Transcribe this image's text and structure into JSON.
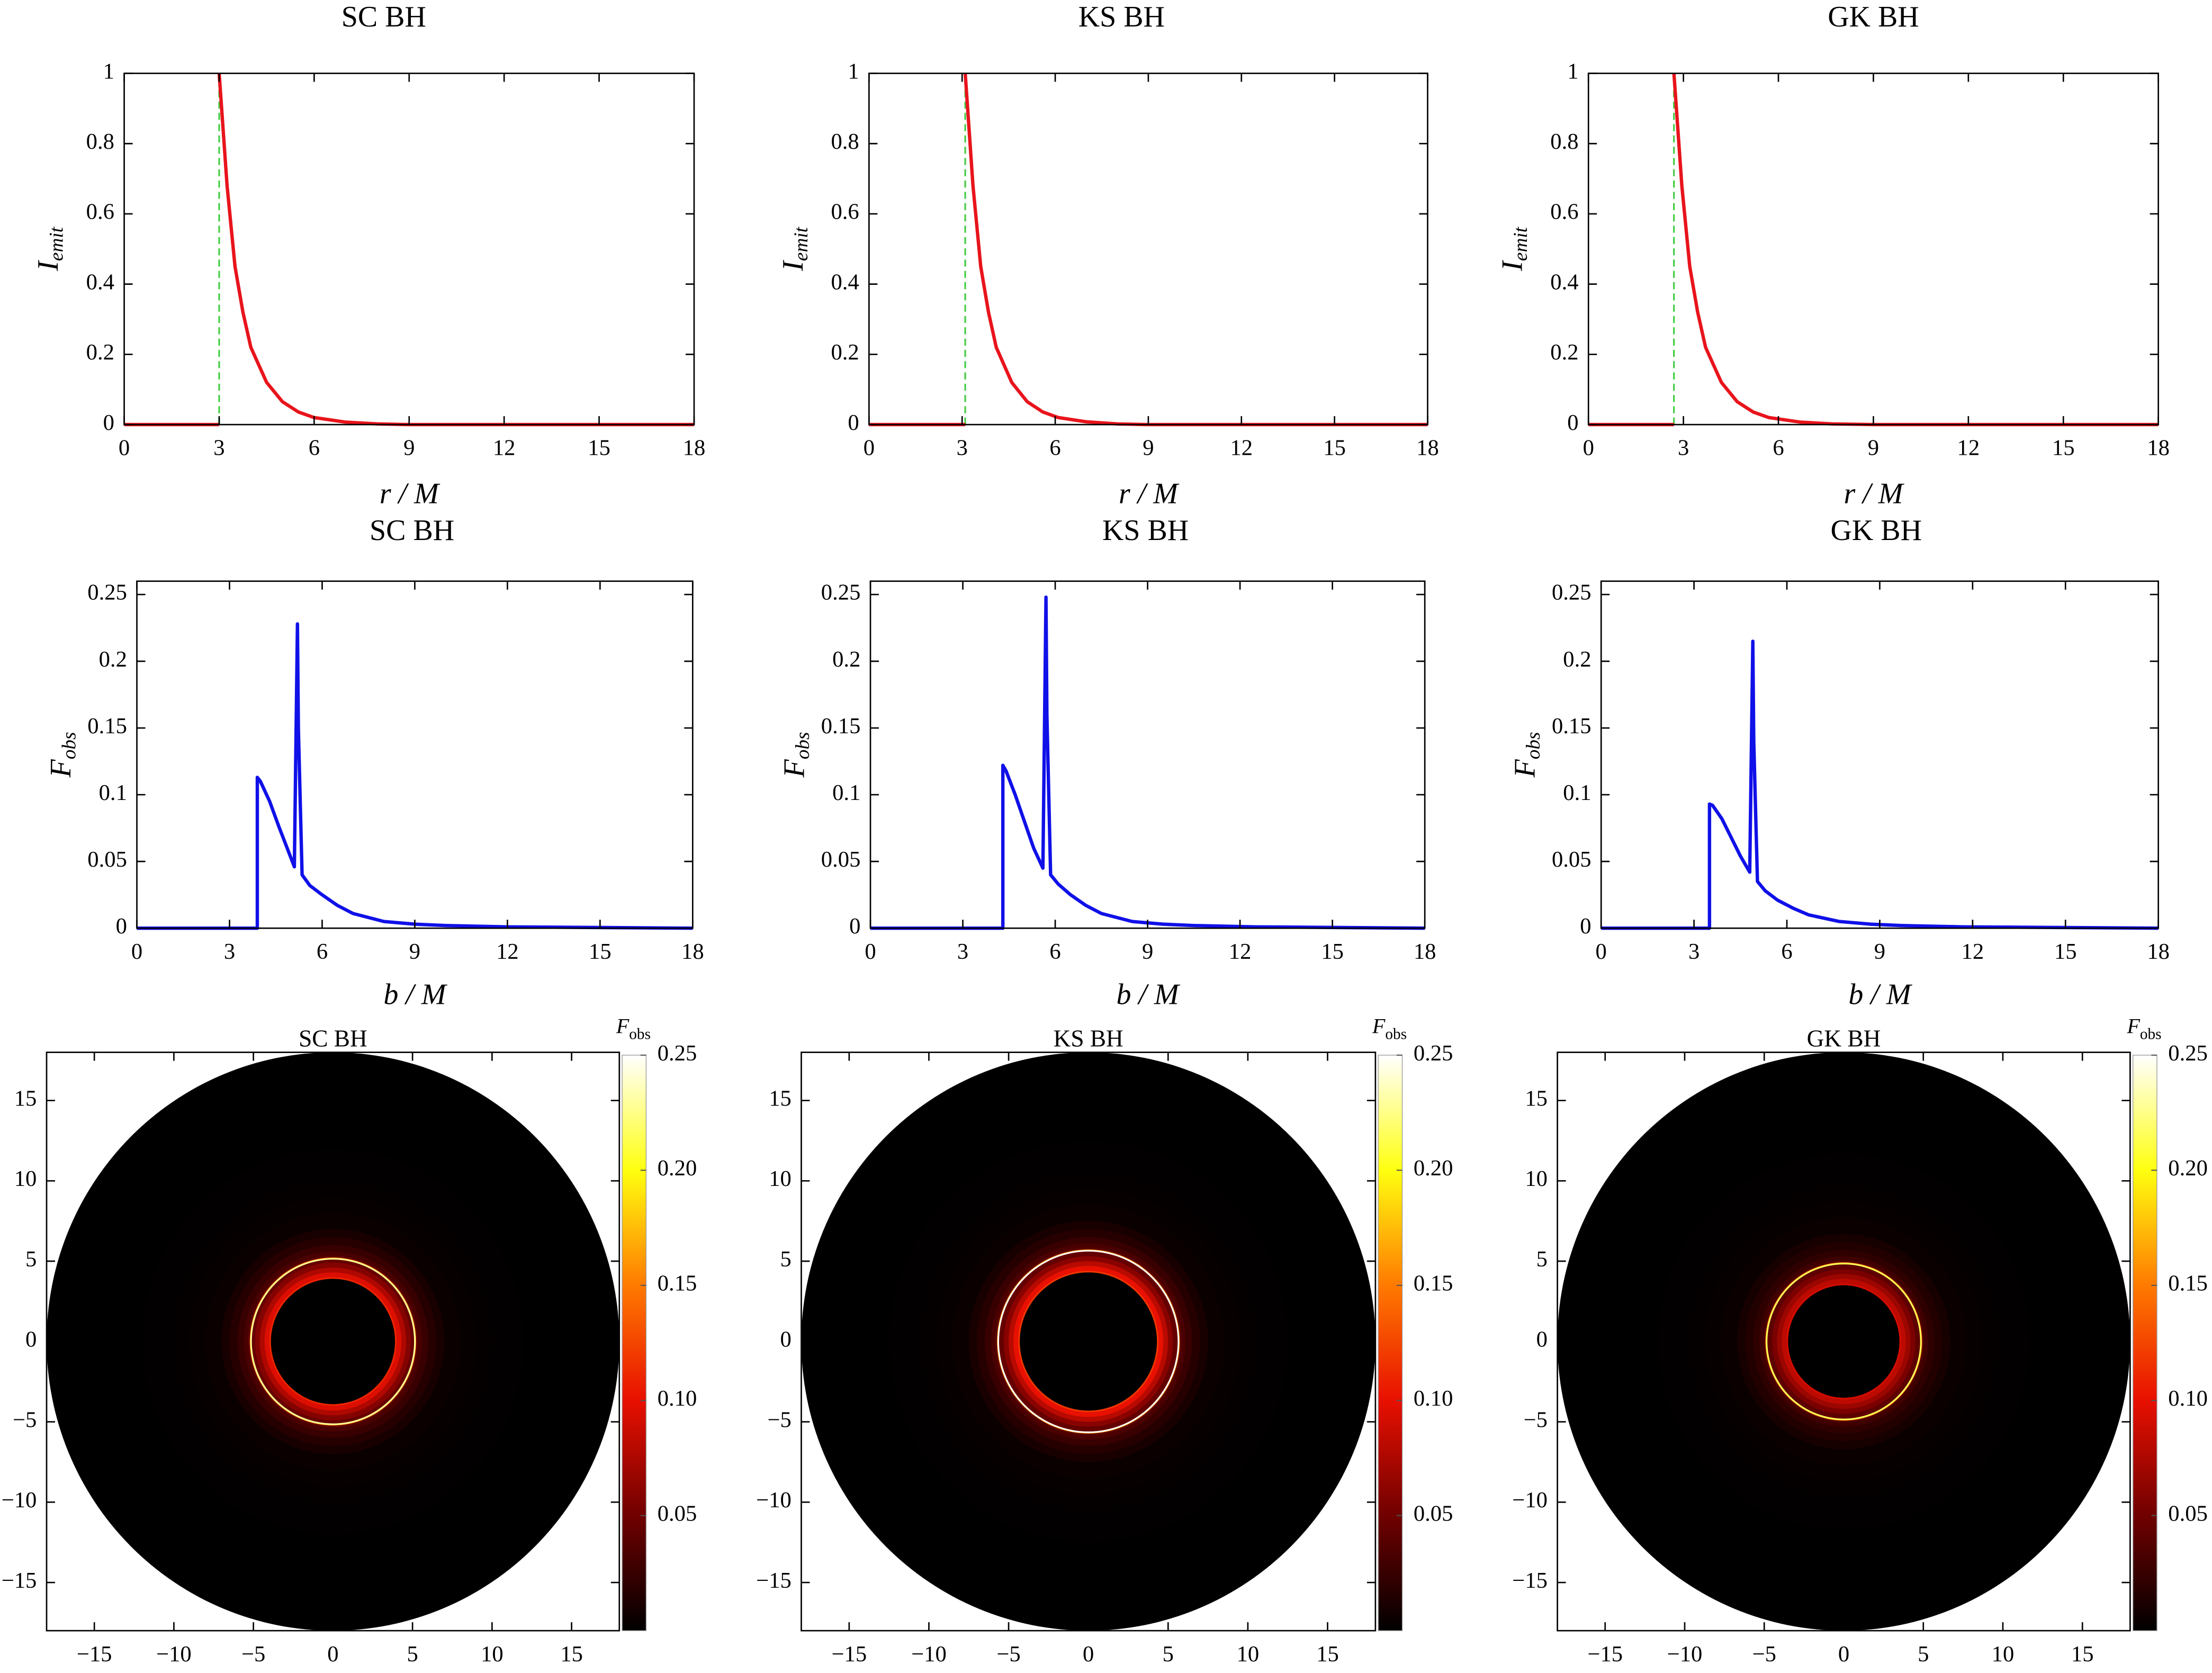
{
  "chart_data": [
    {
      "type": "line",
      "title": "SC BH",
      "x_label": "r / M",
      "y_label": [
        "I",
        "emit"
      ],
      "xlim": [
        0,
        18
      ],
      "ylim": [
        0,
        1
      ],
      "xticks": [
        0,
        3,
        6,
        9,
        12,
        15,
        18
      ],
      "yticks": [
        0,
        0.2,
        0.4,
        0.6,
        0.8,
        1
      ],
      "x": [
        0,
        3,
        3,
        3,
        3.25,
        3.5,
        3.75,
        4,
        4.5,
        5,
        5.5,
        6,
        7,
        8,
        9,
        12,
        18
      ],
      "series": [
        {
          "color": "#e8141c",
          "values": [
            0,
            0,
            null,
            1,
            0.68,
            0.45,
            0.32,
            0.22,
            0.12,
            0.065,
            0.036,
            0.02,
            0.007,
            0.002,
            0,
            0,
            0
          ]
        }
      ],
      "reference_line": {
        "x": 3,
        "color": "#44cc44",
        "style": "dashed"
      }
    },
    {
      "type": "line",
      "title": "KS BH",
      "x_label": "r / M",
      "y_label": [
        "I",
        "emit"
      ],
      "xlim": [
        0,
        18
      ],
      "ylim": [
        0,
        1
      ],
      "xticks": [
        0,
        3,
        6,
        9,
        12,
        15,
        18
      ],
      "yticks": [
        0,
        0.2,
        0.4,
        0.6,
        0.8,
        1
      ],
      "x": [
        0,
        3.1,
        3.1,
        3.1,
        3.35,
        3.6,
        3.85,
        4.1,
        4.6,
        5.1,
        5.6,
        6.1,
        7,
        8,
        9,
        12,
        18
      ],
      "series": [
        {
          "color": "#e8141c",
          "values": [
            0,
            0,
            null,
            1,
            0.68,
            0.45,
            0.32,
            0.22,
            0.12,
            0.065,
            0.036,
            0.02,
            0.008,
            0.002,
            0,
            0,
            0
          ]
        }
      ],
      "reference_line": {
        "x": 3.1,
        "color": "#44cc44",
        "style": "dashed"
      }
    },
    {
      "type": "line",
      "title": "GK BH",
      "x_label": "r / M",
      "y_label": [
        "I",
        "emit"
      ],
      "xlim": [
        0,
        18
      ],
      "ylim": [
        0,
        1
      ],
      "xticks": [
        0,
        3,
        6,
        9,
        12,
        15,
        18
      ],
      "yticks": [
        0,
        0.2,
        0.4,
        0.6,
        0.8,
        1
      ],
      "x": [
        0,
        2.7,
        2.7,
        2.7,
        2.95,
        3.2,
        3.45,
        3.7,
        4.2,
        4.7,
        5.2,
        5.7,
        6.7,
        7.7,
        9,
        12,
        18
      ],
      "series": [
        {
          "color": "#e8141c",
          "values": [
            0,
            0,
            null,
            1,
            0.68,
            0.45,
            0.32,
            0.22,
            0.12,
            0.065,
            0.036,
            0.02,
            0.007,
            0.002,
            0,
            0,
            0
          ]
        }
      ],
      "reference_line": {
        "x": 2.7,
        "color": "#44cc44",
        "style": "dashed"
      }
    },
    {
      "type": "line",
      "title": "SC BH",
      "x_label": "b / M",
      "y_label": [
        "F",
        "obs"
      ],
      "xlim": [
        0,
        18
      ],
      "ylim": [
        0,
        0.26
      ],
      "xticks": [
        0,
        3,
        6,
        9,
        12,
        15,
        18
      ],
      "yticks": [
        0,
        0.05,
        0.1,
        0.15,
        0.2,
        0.25
      ],
      "x": [
        0,
        3.9,
        3.9,
        4.0,
        4.3,
        4.6,
        4.9,
        5.1,
        5.2,
        5.23,
        5.35,
        5.6,
        6,
        6.5,
        7,
        8,
        9,
        10,
        12,
        18
      ],
      "series": [
        {
          "color": "#1010e8",
          "values": [
            0,
            0,
            0.113,
            0.11,
            0.095,
            0.076,
            0.058,
            0.046,
            0.228,
            0.15,
            0.04,
            0.032,
            0.025,
            0.017,
            0.011,
            0.005,
            0.003,
            0.002,
            0.001,
            0
          ]
        }
      ]
    },
    {
      "type": "line",
      "title": "KS BH",
      "x_label": "b / M",
      "y_label": [
        "F",
        "obs"
      ],
      "xlim": [
        0,
        18
      ],
      "ylim": [
        0,
        0.26
      ],
      "xticks": [
        0,
        3,
        6,
        9,
        12,
        15,
        18
      ],
      "yticks": [
        0,
        0.05,
        0.1,
        0.15,
        0.2,
        0.25
      ],
      "x": [
        0,
        4.3,
        4.3,
        4.4,
        4.7,
        5.0,
        5.3,
        5.6,
        5.7,
        5.73,
        5.85,
        6.1,
        6.5,
        7,
        7.5,
        8.5,
        9.5,
        10.5,
        12.5,
        18
      ],
      "series": [
        {
          "color": "#1010e8",
          "values": [
            0,
            0,
            0.122,
            0.118,
            0.1,
            0.08,
            0.06,
            0.045,
            0.248,
            0.16,
            0.04,
            0.033,
            0.025,
            0.017,
            0.011,
            0.005,
            0.003,
            0.002,
            0.001,
            0
          ]
        }
      ]
    },
    {
      "type": "line",
      "title": "GK BH",
      "x_label": "b / M",
      "y_label": [
        "F",
        "obs"
      ],
      "xlim": [
        0,
        18
      ],
      "ylim": [
        0,
        0.26
      ],
      "xticks": [
        0,
        3,
        6,
        9,
        12,
        15,
        18
      ],
      "yticks": [
        0,
        0.05,
        0.1,
        0.15,
        0.2,
        0.25
      ],
      "x": [
        0,
        3.5,
        3.5,
        3.6,
        3.9,
        4.2,
        4.5,
        4.8,
        4.9,
        4.93,
        5.05,
        5.3,
        5.7,
        6.2,
        6.7,
        7.7,
        8.7,
        9.7,
        11.7,
        18
      ],
      "series": [
        {
          "color": "#1010e8",
          "values": [
            0,
            0,
            0.093,
            0.092,
            0.082,
            0.068,
            0.054,
            0.042,
            0.215,
            0.14,
            0.035,
            0.028,
            0.021,
            0.015,
            0.01,
            0.005,
            0.003,
            0.002,
            0.001,
            0
          ]
        }
      ]
    },
    {
      "type": "heatmap",
      "title": "SC BH",
      "colorbar_label": [
        "F",
        "obs"
      ],
      "xlim": [
        -18,
        18
      ],
      "ylim": [
        -18,
        18
      ],
      "xticks": [
        {
          "value": -15,
          "label": "−15"
        },
        {
          "value": -10,
          "label": "−10"
        },
        {
          "value": -5,
          "label": "−5"
        },
        0,
        5,
        10,
        15
      ],
      "yticks": [
        {
          "value": -15,
          "label": "−15"
        },
        {
          "value": -10,
          "label": "−10"
        },
        {
          "value": -5,
          "label": "−5"
        },
        0,
        5,
        10,
        15
      ],
      "zlim": [
        0,
        0.25
      ],
      "zticks": [
        0.05,
        {
          "value": 0.1,
          "label": "0.10"
        },
        0.15,
        {
          "value": 0.2,
          "label": "0.20"
        },
        0.25
      ],
      "colormap": [
        "#000000",
        "#700000",
        "#e81000",
        "#ff7a00",
        "#ffff10",
        "#ffffff"
      ]
    },
    {
      "type": "heatmap",
      "title": "KS BH",
      "colorbar_label": [
        "F",
        "obs"
      ],
      "xlim": [
        -18,
        18
      ],
      "ylim": [
        -18,
        18
      ],
      "xticks": [
        {
          "value": -15,
          "label": "−15"
        },
        {
          "value": -10,
          "label": "−10"
        },
        {
          "value": -5,
          "label": "−5"
        },
        0,
        5,
        10,
        15
      ],
      "yticks": [
        {
          "value": -15,
          "label": "−15"
        },
        {
          "value": -10,
          "label": "−10"
        },
        {
          "value": -5,
          "label": "−5"
        },
        0,
        5,
        10,
        15
      ],
      "zlim": [
        0,
        0.25
      ],
      "zticks": [
        0.05,
        {
          "value": 0.1,
          "label": "0.10"
        },
        0.15,
        {
          "value": 0.2,
          "label": "0.20"
        },
        0.25
      ],
      "colormap": [
        "#000000",
        "#700000",
        "#e81000",
        "#ff7a00",
        "#ffff10",
        "#ffffff"
      ]
    },
    {
      "type": "heatmap",
      "title": "GK BH",
      "colorbar_label": [
        "F",
        "obs"
      ],
      "xlim": [
        -18,
        18
      ],
      "ylim": [
        -18,
        18
      ],
      "xticks": [
        {
          "value": -15,
          "label": "−15"
        },
        {
          "value": -10,
          "label": "−10"
        },
        {
          "value": -5,
          "label": "−5"
        },
        0,
        5,
        10,
        15
      ],
      "yticks": [
        {
          "value": -15,
          "label": "−15"
        },
        {
          "value": -10,
          "label": "−10"
        },
        {
          "value": -5,
          "label": "−5"
        },
        0,
        5,
        10,
        15
      ],
      "zlim": [
        0,
        0.25
      ],
      "zticks": [
        0.05,
        {
          "value": 0.1,
          "label": "0.10"
        },
        0.15,
        {
          "value": 0.2,
          "label": "0.20"
        },
        0.25
      ],
      "colormap": [
        "#000000",
        "#700000",
        "#e81000",
        "#ff7a00",
        "#ffff10",
        "#ffffff"
      ]
    }
  ]
}
